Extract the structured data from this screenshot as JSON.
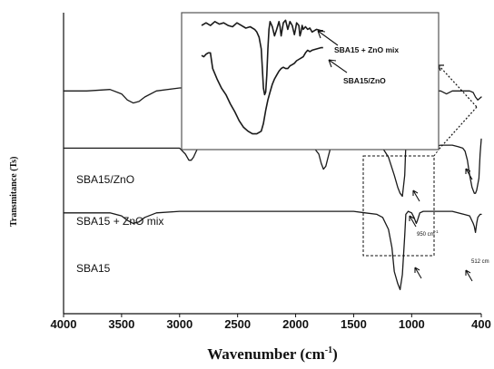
{
  "chart_data": {
    "type": "line",
    "xlabel": "Wavenumber (cm",
    "xlabel_sup": "-1",
    "xlabel_close": ")",
    "ylabel": "Transmitance (Ts)",
    "xlim": [
      4000,
      400
    ],
    "x_ticks": [
      4000,
      3500,
      3000,
      2500,
      2000,
      1500,
      1000,
      400
    ],
    "series": [
      {
        "name": "SBA15/ZnO",
        "x": [
          4000,
          3800,
          3600,
          3500,
          3450,
          3400,
          3350,
          3300,
          3200,
          3000,
          2800,
          2500,
          2200,
          2000,
          1800,
          1700,
          1650,
          1600,
          1500,
          1450,
          1400,
          1350,
          1300,
          1250,
          1200,
          1150,
          1100,
          1080,
          1050,
          1000,
          980,
          950,
          900,
          850,
          800,
          750,
          700,
          650,
          600,
          550,
          500,
          470,
          450,
          430,
          400
        ],
        "y": [
          0.74,
          0.74,
          0.745,
          0.73,
          0.71,
          0.7,
          0.705,
          0.72,
          0.74,
          0.75,
          0.75,
          0.75,
          0.75,
          0.75,
          0.745,
          0.74,
          0.73,
          0.725,
          0.74,
          0.75,
          0.74,
          0.74,
          0.73,
          0.71,
          0.68,
          0.64,
          0.61,
          0.6,
          0.61,
          0.64,
          0.63,
          0.67,
          0.7,
          0.73,
          0.74,
          0.74,
          0.73,
          0.74,
          0.74,
          0.74,
          0.74,
          0.735,
          0.72,
          0.71,
          0.72
        ]
      },
      {
        "name": "SBA15 + ZnO mix",
        "x": [
          4000,
          3500,
          3000,
          2950,
          2920,
          2900,
          2880,
          2850,
          2800,
          2600,
          2400,
          2000,
          1850,
          1800,
          1780,
          1760,
          1740,
          1720,
          1700,
          1650,
          1500,
          1400,
          1300,
          1250,
          1200,
          1150,
          1120,
          1100,
          1080,
          1060,
          1050,
          1030,
          1000,
          980,
          960,
          950,
          930,
          900,
          870,
          850,
          800,
          750,
          700,
          650,
          600,
          560,
          540,
          520,
          500,
          480,
          460,
          450,
          440,
          420,
          410,
          400
        ],
        "y": [
          0.55,
          0.55,
          0.55,
          0.53,
          0.51,
          0.51,
          0.52,
          0.545,
          0.55,
          0.555,
          0.555,
          0.555,
          0.555,
          0.53,
          0.5,
          0.48,
          0.49,
          0.52,
          0.55,
          0.555,
          0.555,
          0.555,
          0.555,
          0.55,
          0.52,
          0.46,
          0.42,
          0.4,
          0.39,
          0.46,
          0.56,
          0.59,
          0.58,
          0.6,
          0.59,
          0.55,
          0.56,
          0.58,
          0.57,
          0.56,
          0.555,
          0.56,
          0.56,
          0.56,
          0.555,
          0.55,
          0.54,
          0.51,
          0.46,
          0.42,
          0.4,
          0.4,
          0.41,
          0.45,
          0.53,
          0.58
        ]
      },
      {
        "name": "SBA15",
        "x": [
          4000,
          3800,
          3600,
          3500,
          3450,
          3400,
          3350,
          3300,
          3200,
          3000,
          2600,
          2200,
          1900,
          1700,
          1500,
          1400,
          1300,
          1250,
          1200,
          1170,
          1150,
          1120,
          1100,
          1080,
          1060,
          1050,
          1030,
          1000,
          980,
          960,
          950,
          930,
          900,
          850,
          800,
          750,
          700,
          650,
          600,
          550,
          500,
          470,
          460,
          450,
          440,
          430,
          410,
          400
        ],
        "y": [
          0.335,
          0.335,
          0.335,
          0.325,
          0.31,
          0.3,
          0.305,
          0.32,
          0.335,
          0.34,
          0.34,
          0.34,
          0.34,
          0.34,
          0.34,
          0.335,
          0.33,
          0.32,
          0.28,
          0.22,
          0.14,
          0.1,
          0.08,
          0.13,
          0.26,
          0.33,
          0.34,
          0.335,
          0.32,
          0.3,
          0.31,
          0.335,
          0.34,
          0.34,
          0.34,
          0.34,
          0.34,
          0.34,
          0.335,
          0.33,
          0.325,
          0.3,
          0.29,
          0.27,
          0.3,
          0.32,
          0.33,
          0.33
        ]
      }
    ],
    "annotations": [
      {
        "text": "950 cm",
        "superscript": "-1"
      },
      {
        "text": "512 cm"
      }
    ],
    "inset": {
      "labels": [
        "SBA15 + ZnO mix",
        "SBA15/ZnO"
      ],
      "x_range": [
        1400,
        800
      ],
      "curves": [
        {
          "label": "SBA15 + ZnO mix",
          "x": [
            1400,
            1380,
            1360,
            1340,
            1320,
            1300,
            1280,
            1260,
            1240,
            1220,
            1200,
            1180,
            1160,
            1150,
            1140,
            1130,
            1125,
            1120,
            1115,
            1110,
            1105,
            1100,
            1095,
            1090,
            1080,
            1070,
            1060,
            1050,
            1045,
            1040,
            1030,
            1020,
            1010,
            1000,
            990,
            980,
            975,
            970,
            960,
            955,
            950,
            945,
            940,
            930,
            920,
            910,
            900,
            880,
            860,
            850
          ],
          "y": [
            0.93,
            0.95,
            0.93,
            0.96,
            0.94,
            0.95,
            0.93,
            0.92,
            0.95,
            0.93,
            0.91,
            0.92,
            0.9,
            0.88,
            0.84,
            0.75,
            0.6,
            0.45,
            0.4,
            0.42,
            0.55,
            0.75,
            0.9,
            0.96,
            0.92,
            0.85,
            0.9,
            0.96,
            0.92,
            0.85,
            0.95,
            0.97,
            0.9,
            0.96,
            0.93,
            0.86,
            0.9,
            0.95,
            0.93,
            0.85,
            0.88,
            0.93,
            0.9,
            0.92,
            0.9,
            0.91,
            0.88,
            0.9,
            0.89,
            0.89
          ]
        },
        {
          "label": "SBA15/ZnO",
          "x": [
            1400,
            1390,
            1380,
            1370,
            1360,
            1350,
            1330,
            1310,
            1290,
            1270,
            1250,
            1230,
            1210,
            1190,
            1170,
            1150,
            1130,
            1120,
            1110,
            1100,
            1090,
            1080,
            1070,
            1060,
            1050,
            1040,
            1030,
            1020,
            1010,
            1000,
            990,
            980,
            970,
            960,
            950,
            940,
            930,
            920,
            910,
            900,
            880,
            860,
            850
          ],
          "y": [
            0.7,
            0.69,
            0.71,
            0.72,
            0.72,
            0.6,
            0.52,
            0.45,
            0.4,
            0.33,
            0.27,
            0.2,
            0.15,
            0.12,
            0.1,
            0.1,
            0.12,
            0.18,
            0.28,
            0.36,
            0.42,
            0.48,
            0.52,
            0.55,
            0.58,
            0.6,
            0.61,
            0.6,
            0.6,
            0.62,
            0.63,
            0.64,
            0.66,
            0.67,
            0.68,
            0.69,
            0.72,
            0.74,
            0.73,
            0.74,
            0.75,
            0.76,
            0.76
          ]
        }
      ]
    },
    "grid": false,
    "legend": "inline labels"
  }
}
